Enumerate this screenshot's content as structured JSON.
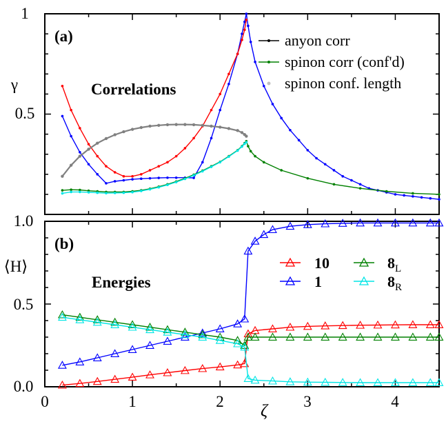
{
  "chart_data": [
    {
      "panel": "(a)",
      "type": "line",
      "title": "Correlations",
      "ylabel": "γ",
      "xlim": [
        0,
        4.5
      ],
      "ylim": [
        0,
        1
      ],
      "yticks": [
        0.5,
        1
      ],
      "ytick_labels": [
        "0.5",
        "1"
      ],
      "legend": "top-right",
      "series": [
        {
          "name": "anyon corr",
          "color": "#0000ff",
          "x": [
            0.2,
            0.3,
            0.4,
            0.5,
            0.6,
            0.7,
            0.8,
            0.9,
            1.0,
            1.1,
            1.2,
            1.3,
            1.4,
            1.5,
            1.6,
            1.7,
            1.8,
            1.9,
            2.0,
            2.1,
            2.2,
            2.25,
            2.28,
            2.3,
            2.32,
            2.35,
            2.4,
            2.5,
            2.6,
            2.7,
            2.8,
            2.9,
            3.0,
            3.1,
            3.2,
            3.3,
            3.4,
            3.5,
            3.6,
            3.7,
            3.8,
            3.9,
            4.0,
            4.1,
            4.2,
            4.3,
            4.4,
            4.5
          ],
          "y": [
            0.49,
            0.39,
            0.31,
            0.25,
            0.2,
            0.155,
            0.165,
            0.17,
            0.175,
            0.178,
            0.18,
            0.182,
            0.183,
            0.183,
            0.183,
            0.182,
            0.26,
            0.38,
            0.52,
            0.65,
            0.8,
            0.9,
            0.96,
            1.0,
            0.94,
            0.86,
            0.76,
            0.64,
            0.55,
            0.48,
            0.42,
            0.37,
            0.32,
            0.28,
            0.25,
            0.22,
            0.19,
            0.17,
            0.15,
            0.13,
            0.12,
            0.11,
            0.1,
            0.095,
            0.09,
            0.085,
            0.08,
            0.075
          ]
        },
        {
          "name": "",
          "color": "#ff0000",
          "x": [
            0.2,
            0.3,
            0.4,
            0.5,
            0.6,
            0.7,
            0.8,
            0.9,
            1.0,
            1.1,
            1.2,
            1.3,
            1.4,
            1.5,
            1.6,
            1.7,
            1.8,
            1.9,
            2.0,
            2.1,
            2.2,
            2.25,
            2.28,
            2.3
          ],
          "y": [
            0.64,
            0.52,
            0.43,
            0.35,
            0.29,
            0.24,
            0.21,
            0.19,
            0.19,
            0.2,
            0.22,
            0.24,
            0.26,
            0.29,
            0.33,
            0.38,
            0.44,
            0.52,
            0.6,
            0.7,
            0.8,
            0.87,
            0.92,
            0.97
          ]
        },
        {
          "name": "spinon corr (conf'd)",
          "color": "#008000",
          "x": [
            0.2,
            0.3,
            0.4,
            0.5,
            0.6,
            0.7,
            0.8,
            0.9,
            1.0,
            1.1,
            1.2,
            1.3,
            1.4,
            1.5,
            1.6,
            1.7,
            1.8,
            1.9,
            2.0,
            2.1,
            2.2,
            2.25,
            2.28,
            2.3,
            2.32,
            2.35,
            2.4,
            2.5,
            2.7,
            3.0,
            3.3,
            3.6,
            3.9,
            4.2,
            4.5
          ],
          "y": [
            0.12,
            0.123,
            0.122,
            0.118,
            0.115,
            0.112,
            0.112,
            0.112,
            0.115,
            0.12,
            0.128,
            0.138,
            0.15,
            0.164,
            0.18,
            0.198,
            0.218,
            0.24,
            0.262,
            0.29,
            0.32,
            0.34,
            0.355,
            0.365,
            0.34,
            0.315,
            0.29,
            0.26,
            0.22,
            0.18,
            0.15,
            0.13,
            0.115,
            0.105,
            0.1
          ]
        },
        {
          "name": "",
          "color": "#00e5e5",
          "x": [
            0.2,
            0.3,
            0.4,
            0.5,
            0.6,
            0.7,
            0.8,
            0.9,
            1.0,
            1.1,
            1.2,
            1.3,
            1.4,
            1.5,
            1.6,
            1.7,
            1.8,
            1.9,
            2.0,
            2.1,
            2.2,
            2.25,
            2.28,
            2.3
          ],
          "y": [
            0.105,
            0.112,
            0.112,
            0.11,
            0.108,
            0.106,
            0.107,
            0.108,
            0.111,
            0.117,
            0.125,
            0.135,
            0.147,
            0.161,
            0.177,
            0.195,
            0.215,
            0.237,
            0.26,
            0.288,
            0.318,
            0.338,
            0.352,
            0.36
          ]
        },
        {
          "name": "spinon conf. length",
          "color": "#808080",
          "x": [
            0.2,
            0.3,
            0.4,
            0.5,
            0.6,
            0.7,
            0.8,
            0.9,
            1.0,
            1.1,
            1.2,
            1.3,
            1.4,
            1.5,
            1.6,
            1.7,
            1.8,
            1.9,
            2.0,
            2.1,
            2.2,
            2.25,
            2.28,
            2.3
          ],
          "y": [
            0.19,
            0.245,
            0.29,
            0.325,
            0.355,
            0.378,
            0.397,
            0.412,
            0.424,
            0.433,
            0.44,
            0.444,
            0.447,
            0.448,
            0.448,
            0.447,
            0.444,
            0.44,
            0.435,
            0.428,
            0.418,
            0.408,
            0.398,
            0.39
          ]
        }
      ]
    },
    {
      "panel": "(b)",
      "type": "line",
      "title": "Energies",
      "xlabel": "ζ",
      "ylabel": "⟨H⟩",
      "xlim": [
        0,
        4.5
      ],
      "ylim": [
        0,
        1
      ],
      "xticks": [
        0,
        1,
        2,
        3,
        4
      ],
      "xtick_labels": [
        "0",
        "1",
        "2",
        "3",
        "4"
      ],
      "yticks": [
        0,
        0.5,
        1
      ],
      "ytick_labels": [
        "0.0",
        "0.5",
        "1.0"
      ],
      "legend": "top-right",
      "series": [
        {
          "name": "10",
          "color": "#ff0000",
          "x": [
            0.2,
            0.4,
            0.6,
            0.8,
            1.0,
            1.2,
            1.4,
            1.6,
            1.8,
            2.0,
            2.2,
            2.28,
            2.32,
            2.4,
            2.6,
            2.8,
            3.0,
            3.2,
            3.4,
            3.6,
            3.8,
            4.0,
            4.2,
            4.4,
            4.5
          ],
          "y": [
            0.01,
            0.02,
            0.032,
            0.045,
            0.058,
            0.072,
            0.085,
            0.098,
            0.11,
            0.12,
            0.132,
            0.14,
            0.32,
            0.34,
            0.35,
            0.36,
            0.365,
            0.368,
            0.37,
            0.372,
            0.373,
            0.374,
            0.375,
            0.375,
            0.375
          ]
        },
        {
          "name": "1",
          "color": "#0000ff",
          "x": [
            0.2,
            0.4,
            0.6,
            0.8,
            1.0,
            1.2,
            1.4,
            1.6,
            1.8,
            2.0,
            2.2,
            2.28,
            2.32,
            2.4,
            2.5,
            2.6,
            2.8,
            3.0,
            3.2,
            3.4,
            3.6,
            3.8,
            4.0,
            4.2,
            4.4,
            4.5
          ],
          "y": [
            0.13,
            0.15,
            0.175,
            0.2,
            0.225,
            0.25,
            0.275,
            0.3,
            0.325,
            0.35,
            0.38,
            0.41,
            0.82,
            0.88,
            0.92,
            0.95,
            0.97,
            0.98,
            0.985,
            0.988,
            0.99,
            0.99,
            0.99,
            0.99,
            0.99,
            0.99
          ]
        },
        {
          "name": "8L",
          "color": "#008000",
          "x": [
            0.2,
            0.4,
            0.6,
            0.8,
            1.0,
            1.2,
            1.4,
            1.6,
            1.8,
            2.0,
            2.2,
            2.28,
            2.32,
            2.4,
            2.6,
            2.8,
            3.0,
            3.2,
            3.4,
            3.6,
            3.8,
            4.0,
            4.2,
            4.4,
            4.5
          ],
          "y": [
            0.435,
            0.42,
            0.405,
            0.39,
            0.375,
            0.36,
            0.345,
            0.33,
            0.315,
            0.3,
            0.28,
            0.25,
            0.3,
            0.3,
            0.3,
            0.3,
            0.3,
            0.3,
            0.3,
            0.3,
            0.3,
            0.3,
            0.3,
            0.3,
            0.3
          ]
        },
        {
          "name": "8R",
          "color": "#00e5e5",
          "x": [
            0.2,
            0.4,
            0.6,
            0.8,
            1.0,
            1.2,
            1.4,
            1.6,
            1.8,
            2.0,
            2.2,
            2.28,
            2.32,
            2.4,
            2.6,
            2.8,
            3.0,
            3.2,
            3.4,
            3.6,
            3.8,
            4.0,
            4.2,
            4.4,
            4.5
          ],
          "y": [
            0.42,
            0.405,
            0.39,
            0.375,
            0.36,
            0.345,
            0.33,
            0.315,
            0.3,
            0.28,
            0.26,
            0.24,
            0.05,
            0.04,
            0.035,
            0.03,
            0.028,
            0.027,
            0.026,
            0.025,
            0.025,
            0.025,
            0.025,
            0.025,
            0.025
          ]
        }
      ]
    }
  ],
  "legend_a": {
    "anyon": "anyon corr",
    "spinon": "spinon corr (conf'd)",
    "conf": "spinon conf. length"
  },
  "legend_b": {
    "ten": "10",
    "one": "1",
    "eightL_main": "8",
    "eightL_sub": "L",
    "eightR_main": "8",
    "eightR_sub": "R"
  },
  "labels": {
    "panel_a": "(a)",
    "panel_b": "(b)",
    "title_a": "Correlations",
    "title_b": "Energies",
    "ylabel_a": "γ",
    "ylabel_b": "⟨H⟩",
    "xlabel": "ζ"
  },
  "tick_labels": {
    "a_y": [
      "1",
      "0.5"
    ],
    "b_y": [
      "1.0",
      "0.5",
      "0.0"
    ],
    "x": [
      "0",
      "1",
      "2",
      "3",
      "4"
    ]
  }
}
